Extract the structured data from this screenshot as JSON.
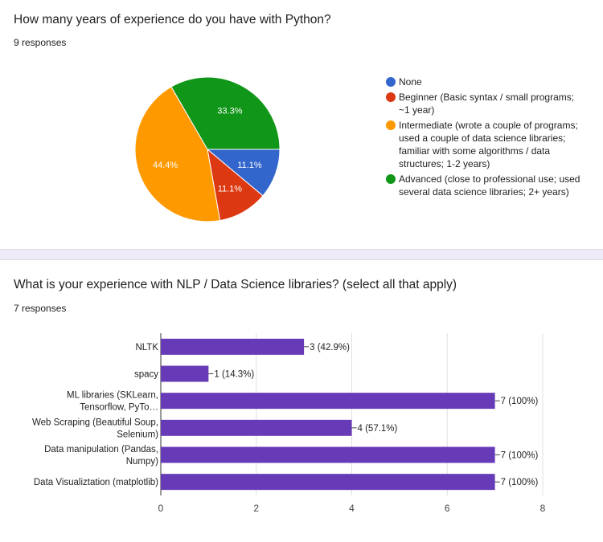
{
  "questions": [
    {
      "title": "How many years of experience do you have with Python?",
      "responses": "9 responses"
    },
    {
      "title": "What is your experience with NLP / Data Science libraries? (select all that apply)",
      "responses": "7 responses"
    }
  ],
  "chart_data": [
    {
      "type": "pie",
      "title": "",
      "labels": [
        "None",
        "Beginner (Basic syntax / small programs; ~1 year)",
        "Intermediate (wrote a couple of programs; used a couple of data science libraries; familiar with some algorithms / data structures; 1-2 years)",
        "Advanced (close to professional use; used several data science libraries; 2+ years)"
      ],
      "values": [
        1,
        1,
        4,
        3
      ],
      "percent_labels": [
        "11.1%",
        "11.1%",
        "44.4%",
        "33.3%"
      ],
      "colors": [
        "#3366cc",
        "#dc3912",
        "#ff9900",
        "#109618"
      ],
      "legend_position": "right"
    },
    {
      "type": "bar",
      "orientation": "horizontal",
      "title": "",
      "categories": [
        "NLTK",
        "spacy",
        "ML libraries (SKLearn, Tensorflow, PyTo…",
        "Web Scraping (Beautiful Soup, Selenium)",
        "Data manipulation (Pandas, Numpy)",
        "Data Visualiztation (matplotlib)"
      ],
      "category_lines": [
        [
          "NLTK"
        ],
        [
          "spacy"
        ],
        [
          "ML libraries (SKLearn,",
          "Tensorflow, PyTo…"
        ],
        [
          "Web Scraping (Beautiful Soup,",
          "Selenium)"
        ],
        [
          "Data manipulation (Pandas,",
          "Numpy)"
        ],
        [
          "Data Visualiztation (matplotlib)"
        ]
      ],
      "values": [
        3,
        1,
        7,
        4,
        7,
        7
      ],
      "data_labels": [
        "3 (42.9%)",
        "1 (14.3%)",
        "7 (100%)",
        "4 (57.1%)",
        "7 (100%)",
        "7 (100%)"
      ],
      "xlim": [
        0,
        8
      ],
      "xticks": [
        "0",
        "2",
        "4",
        "6",
        "8"
      ],
      "grid": true,
      "color": "#673ab7"
    }
  ]
}
